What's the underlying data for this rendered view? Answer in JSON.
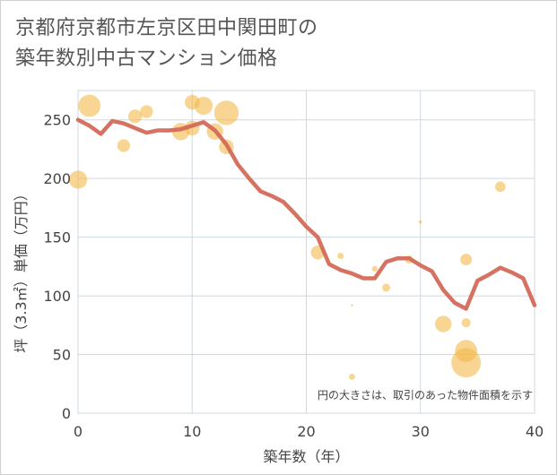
{
  "title_line1": "京都府京都市左京区田中関田町の",
  "title_line2": "築年数別中古マンション価格",
  "chart_data": {
    "type": "scatter",
    "title": "京都府京都市左京区田中関田町の築年数別中古マンション価格",
    "xlabel": "築年数（年）",
    "ylabel": "坪（3.3㎡）単価（万円）",
    "xlim": [
      0,
      40
    ],
    "ylim": [
      0,
      275
    ],
    "xticks": [
      0,
      10,
      20,
      30,
      40
    ],
    "yticks": [
      0,
      50,
      100,
      150,
      200,
      250
    ],
    "grid": true,
    "note": "円の大きさは、取引のあった物件面積を示す",
    "colors": {
      "bubble": "#f3b94a",
      "line": "#d46a58",
      "grid": "#cfd8e0"
    },
    "bubbles": [
      {
        "x": 0,
        "y": 199,
        "area": 60
      },
      {
        "x": 1,
        "y": 262,
        "area": 90
      },
      {
        "x": 4,
        "y": 228,
        "area": 30
      },
      {
        "x": 5,
        "y": 253,
        "area": 35
      },
      {
        "x": 6,
        "y": 257,
        "area": 30
      },
      {
        "x": 9,
        "y": 240,
        "area": 55
      },
      {
        "x": 10,
        "y": 265,
        "area": 40
      },
      {
        "x": 10,
        "y": 243,
        "area": 40
      },
      {
        "x": 11,
        "y": 262,
        "area": 60
      },
      {
        "x": 12,
        "y": 240,
        "area": 50
      },
      {
        "x": 13,
        "y": 256,
        "area": 110
      },
      {
        "x": 13,
        "y": 227,
        "area": 40
      },
      {
        "x": 21,
        "y": 137,
        "area": 35
      },
      {
        "x": 23,
        "y": 134,
        "area": 7
      },
      {
        "x": 24,
        "y": 92,
        "area": 1
      },
      {
        "x": 24,
        "y": 31,
        "area": 7
      },
      {
        "x": 26,
        "y": 123,
        "area": 6
      },
      {
        "x": 27,
        "y": 107,
        "area": 12
      },
      {
        "x": 29,
        "y": 131,
        "area": 12
      },
      {
        "x": 30,
        "y": 163,
        "area": 2
      },
      {
        "x": 32,
        "y": 76,
        "area": 50
      },
      {
        "x": 34,
        "y": 131,
        "area": 25
      },
      {
        "x": 34,
        "y": 77,
        "area": 15
      },
      {
        "x": 34,
        "y": 53,
        "area": 90
      },
      {
        "x": 34,
        "y": 43,
        "area": 160
      },
      {
        "x": 37,
        "y": 193,
        "area": 20
      }
    ],
    "line": {
      "x": [
        0,
        1,
        2,
        3,
        4,
        5,
        6,
        7,
        8,
        9,
        10,
        11,
        12,
        13,
        14,
        15,
        16,
        17,
        18,
        19,
        20,
        21,
        22,
        23,
        24,
        25,
        26,
        27,
        28,
        29,
        30,
        31,
        32,
        33,
        34,
        35,
        36,
        37,
        38,
        39,
        40
      ],
      "y": [
        250,
        245,
        238,
        249,
        247,
        243,
        239,
        241,
        241,
        242,
        245,
        248,
        241,
        229,
        212,
        200,
        189,
        185,
        180,
        170,
        159,
        150,
        127,
        122,
        119,
        115,
        115,
        129,
        132,
        132,
        126,
        121,
        105,
        94,
        89,
        113,
        118,
        124,
        120,
        115,
        92
      ]
    }
  }
}
